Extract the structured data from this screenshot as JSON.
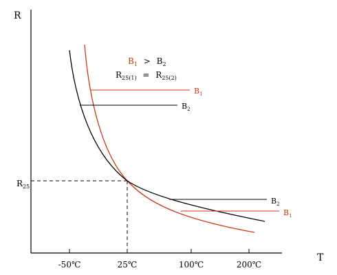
{
  "axes": {
    "y_label": "R",
    "x_label": "T",
    "x_ticks": [
      "-50℃",
      "25℃",
      "100℃",
      "200℃"
    ],
    "reference_label": "R",
    "reference_sub": "25"
  },
  "condition": {
    "b1": "B",
    "b1_sub": "1",
    "gt": ">",
    "b2": "B",
    "b2_sub": "2",
    "r_left": "R",
    "r_left_sub": "25(1)",
    "eq": "=",
    "r_right": "R",
    "r_right_sub": "25(2)"
  },
  "curves": [
    {
      "label": "B",
      "sub": "1",
      "color": "#cc3311"
    },
    {
      "label": "B",
      "sub": "2",
      "color": "#000000"
    }
  ],
  "colors": {
    "b1": "#cc3311",
    "b2": "#000000",
    "axis": "#000000"
  }
}
